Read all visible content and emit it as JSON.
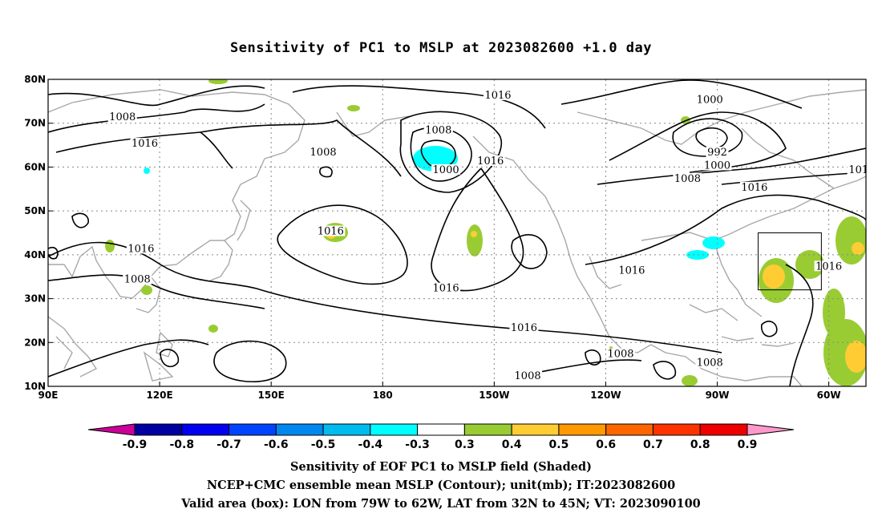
{
  "chart_data": {
    "type": "contour",
    "title": "Sensitivity of PC1 to MSLP at 2023082600 +1.0 day",
    "x_ticks": [
      "90E",
      "120E",
      "150E",
      "180",
      "150W",
      "120W",
      "90W",
      "60W"
    ],
    "y_ticks": [
      "10N",
      "20N",
      "30N",
      "40N",
      "50N",
      "60N",
      "70N",
      "80N"
    ],
    "lon_range": [
      90,
      310
    ],
    "lat_range": [
      10,
      80
    ],
    "grid": true,
    "contour_labels": [
      {
        "text": "1016",
        "lon": 211,
        "lat": 76
      },
      {
        "text": "1000",
        "lon": 268,
        "lat": 75
      },
      {
        "text": "1008",
        "lon": 110,
        "lat": 71
      },
      {
        "text": "1008",
        "lon": 195,
        "lat": 68
      },
      {
        "text": "1016",
        "lon": 116,
        "lat": 65
      },
      {
        "text": "1008",
        "lon": 164,
        "lat": 63
      },
      {
        "text": "992",
        "lon": 270,
        "lat": 63
      },
      {
        "text": "1000",
        "lon": 270,
        "lat": 60
      },
      {
        "text": "1000",
        "lon": 197,
        "lat": 59
      },
      {
        "text": "1016",
        "lon": 209,
        "lat": 61
      },
      {
        "text": "1008",
        "lon": 262,
        "lat": 57
      },
      {
        "text": "1016",
        "lon": 280,
        "lat": 55
      },
      {
        "text": "101",
        "lon": 308,
        "lat": 59
      },
      {
        "text": "1016",
        "lon": 115,
        "lat": 41
      },
      {
        "text": "1016",
        "lon": 166,
        "lat": 45
      },
      {
        "text": "1008",
        "lon": 114,
        "lat": 34
      },
      {
        "text": "1016",
        "lon": 197,
        "lat": 32
      },
      {
        "text": "1016",
        "lon": 247,
        "lat": 36
      },
      {
        "text": "1016",
        "lon": 300,
        "lat": 37
      },
      {
        "text": "1016",
        "lon": 218,
        "lat": 23
      },
      {
        "text": "1008",
        "lon": 244,
        "lat": 17
      },
      {
        "text": "1008",
        "lon": 268,
        "lat": 15
      },
      {
        "text": "1008",
        "lon": 219,
        "lat": 12
      }
    ],
    "colorbar": {
      "labels": [
        "-0.9",
        "-0.8",
        "-0.7",
        "-0.6",
        "-0.5",
        "-0.4",
        "-0.3",
        "0.3",
        "0.4",
        "0.5",
        "0.6",
        "0.7",
        "0.8",
        "0.9"
      ],
      "colors": [
        "#cc0099",
        "#0000a0",
        "#0000ee",
        "#0044ff",
        "#0088ee",
        "#00bbee",
        "#00ffff",
        "#ffffff",
        "#99cc33",
        "#ffcc33",
        "#ff9900",
        "#ff6600",
        "#ff3300",
        "#ee0000",
        "#ff99cc"
      ]
    },
    "valid_box": {
      "lon": [
        281,
        298
      ],
      "lat": [
        32,
        45
      ]
    }
  },
  "captions": {
    "line1": "Sensitivity of EOF PC1 to MSLP field (Shaded)",
    "line2": "NCEP+CMC ensemble mean MSLP (Contour); unit(mb); IT:2023082600",
    "line3": "Valid area (box): LON from 79W to 62W, LAT from 32N to 45N; VT: 2023090100"
  }
}
